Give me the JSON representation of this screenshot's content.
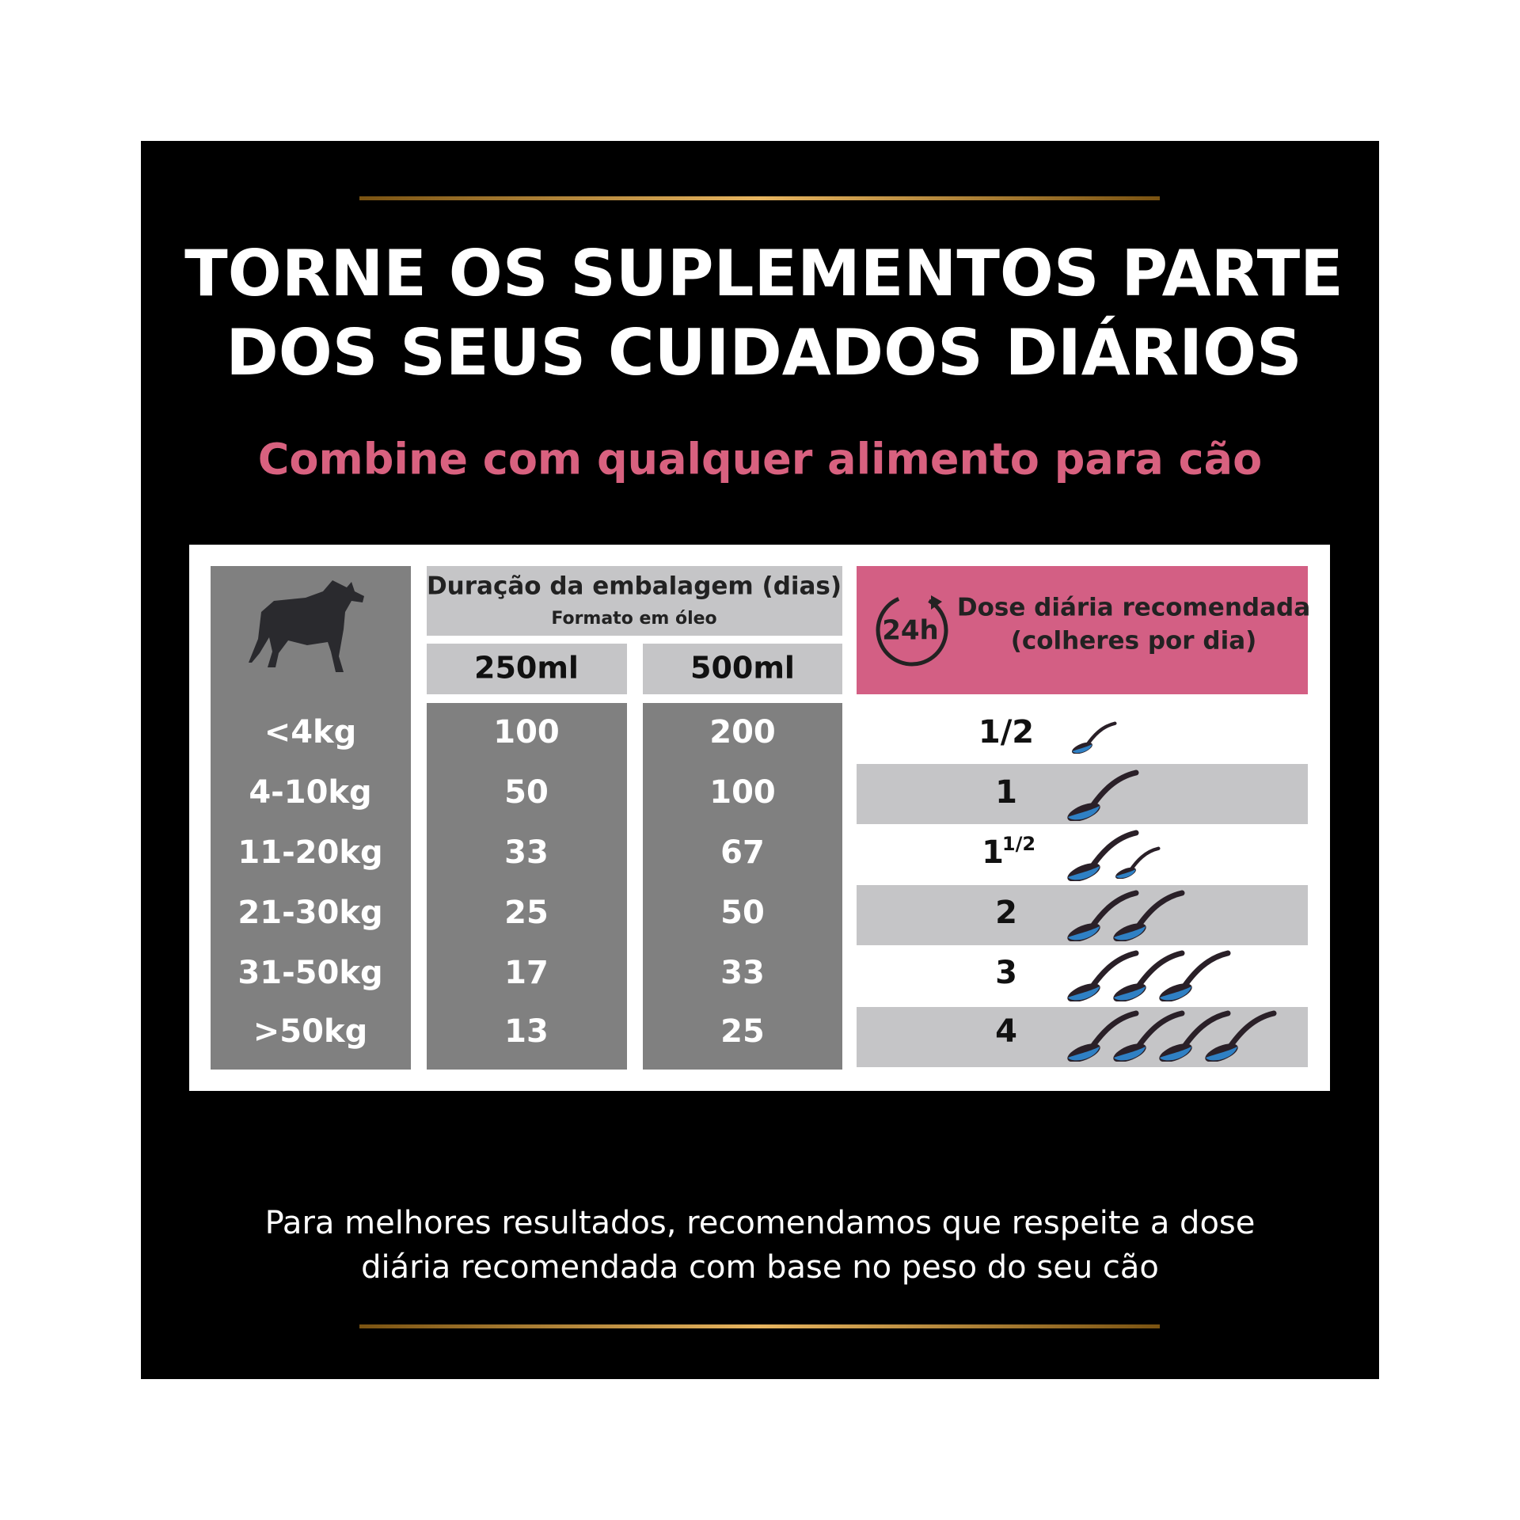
{
  "header": {
    "title_lines": [
      "TORNE OS SUPLEMENTOS PARTE",
      "DOS SEUS CUIDADOS DIÁRIOS"
    ],
    "subtitle": "Combine com qualquer alimento para cão"
  },
  "table": {
    "duration_header": "Duração da embalagem (dias)",
    "duration_subheader": "Formato em óleo",
    "sizes": [
      "250ml",
      "500ml"
    ],
    "dose_header_lines": [
      "Dose diária recomendada",
      "(colheres por dia)"
    ],
    "clock_label": "24h",
    "rows": [
      {
        "weight": "<4kg",
        "days": [
          100,
          200
        ],
        "dose": "1/2"
      },
      {
        "weight": "4-10kg",
        "days": [
          50,
          100
        ],
        "dose": "1"
      },
      {
        "weight": "11-20kg",
        "days": [
          33,
          67
        ],
        "dose": "1",
        "dose_fraction": "1/2"
      },
      {
        "weight": "21-30kg",
        "days": [
          25,
          50
        ],
        "dose": "2"
      },
      {
        "weight": "31-50kg",
        "days": [
          17,
          33
        ],
        "dose": "3"
      },
      {
        "weight": ">50kg",
        "days": [
          13,
          25
        ],
        "dose": "4"
      }
    ]
  },
  "footer": {
    "lines": [
      "Para melhores resultados, recomendamos que respeite a dose",
      "diária recomendada com base no peso do seu cão"
    ]
  }
}
